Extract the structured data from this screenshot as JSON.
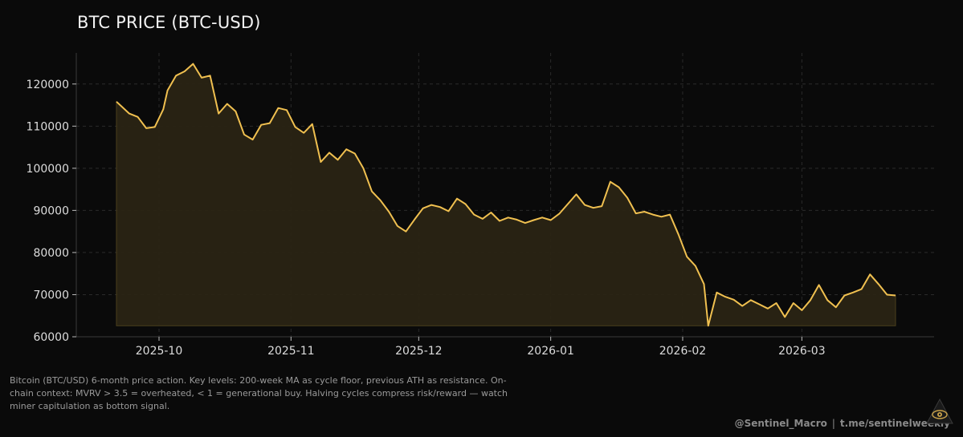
{
  "chart_title": "BTC PRICE (BTC-USD)",
  "caption": "Bitcoin (BTC/USD) 6-month price action. Key levels: 200-week MA as cycle floor, previous ATH as resistance. On-chain context: MVRV > 3.5 = overheated, < 1 = generational buy. Halving cycles compress risk/reward — watch miner capitulation as bottom signal.",
  "credit": {
    "handle": "@Sentinel_Macro",
    "separator": "|",
    "channel": "t.me/sentinelweekly"
  },
  "logo_icon": "eye-pyramid-icon",
  "colors": {
    "background": "#0a0a0a",
    "line": "#f0c050",
    "fill": "#2a2414",
    "grid": "#2a2a2a"
  },
  "chart_data": {
    "type": "area",
    "title": "BTC PRICE (BTC-USD)",
    "xlabel": "",
    "ylabel": "",
    "grid": true,
    "ylim": [
      60000,
      127000
    ],
    "yticks": [
      60000,
      70000,
      80000,
      90000,
      100000,
      110000,
      120000
    ],
    "xticks": [
      {
        "date": "2025-10-01",
        "label": "2025-10"
      },
      {
        "date": "2025-11-01",
        "label": "2025-11"
      },
      {
        "date": "2025-12-01",
        "label": "2025-12"
      },
      {
        "date": "2026-01-01",
        "label": "2026-01"
      },
      {
        "date": "2026-02-01",
        "label": "2026-02"
      },
      {
        "date": "2026-03-01",
        "label": "2026-03"
      }
    ],
    "x_start": "2025-09-21",
    "x_end": "2026-03-23",
    "baseline": 62600,
    "series": [
      {
        "values": [
          [
            "2025-09-21",
            115800
          ],
          [
            "2025-09-24",
            113000
          ],
          [
            "2025-09-26",
            112200
          ],
          [
            "2025-09-28",
            109500
          ],
          [
            "2025-09-30",
            109800
          ],
          [
            "2025-10-02",
            114000
          ],
          [
            "2025-10-03",
            118500
          ],
          [
            "2025-10-05",
            122000
          ],
          [
            "2025-10-07",
            123000
          ],
          [
            "2025-10-09",
            124800
          ],
          [
            "2025-10-11",
            121500
          ],
          [
            "2025-10-13",
            122000
          ],
          [
            "2025-10-15",
            113000
          ],
          [
            "2025-10-17",
            115300
          ],
          [
            "2025-10-19",
            113500
          ],
          [
            "2025-10-21",
            108000
          ],
          [
            "2025-10-23",
            106800
          ],
          [
            "2025-10-25",
            110300
          ],
          [
            "2025-10-27",
            110700
          ],
          [
            "2025-10-29",
            114300
          ],
          [
            "2025-10-31",
            113800
          ],
          [
            "2025-11-02",
            109800
          ],
          [
            "2025-11-04",
            108400
          ],
          [
            "2025-11-06",
            110500
          ],
          [
            "2025-11-08",
            101500
          ],
          [
            "2025-11-10",
            103700
          ],
          [
            "2025-11-12",
            102000
          ],
          [
            "2025-11-14",
            104500
          ],
          [
            "2025-11-16",
            103500
          ],
          [
            "2025-11-18",
            100000
          ],
          [
            "2025-11-20",
            94500
          ],
          [
            "2025-11-22",
            92400
          ],
          [
            "2025-11-24",
            89700
          ],
          [
            "2025-11-26",
            86300
          ],
          [
            "2025-11-28",
            85000
          ],
          [
            "2025-11-30",
            87800
          ],
          [
            "2025-12-02",
            90500
          ],
          [
            "2025-12-04",
            91300
          ],
          [
            "2025-12-06",
            90800
          ],
          [
            "2025-12-08",
            89800
          ],
          [
            "2025-12-10",
            92800
          ],
          [
            "2025-12-12",
            91500
          ],
          [
            "2025-12-14",
            89000
          ],
          [
            "2025-12-16",
            88000
          ],
          [
            "2025-12-18",
            89500
          ],
          [
            "2025-12-20",
            87500
          ],
          [
            "2025-12-22",
            88300
          ],
          [
            "2025-12-24",
            87800
          ],
          [
            "2025-12-26",
            87000
          ],
          [
            "2025-12-28",
            87700
          ],
          [
            "2025-12-30",
            88300
          ],
          [
            "2026-01-01",
            87700
          ],
          [
            "2026-01-03",
            89200
          ],
          [
            "2026-01-05",
            91500
          ],
          [
            "2026-01-07",
            93800
          ],
          [
            "2026-01-09",
            91300
          ],
          [
            "2026-01-11",
            90600
          ],
          [
            "2026-01-13",
            91000
          ],
          [
            "2026-01-15",
            96800
          ],
          [
            "2026-01-17",
            95500
          ],
          [
            "2026-01-19",
            93000
          ],
          [
            "2026-01-21",
            89300
          ],
          [
            "2026-01-23",
            89700
          ],
          [
            "2026-01-25",
            89000
          ],
          [
            "2026-01-27",
            88500
          ],
          [
            "2026-01-29",
            89000
          ],
          [
            "2026-01-31",
            84300
          ],
          [
            "2026-02-02",
            79000
          ],
          [
            "2026-02-04",
            76800
          ],
          [
            "2026-02-06",
            72500
          ],
          [
            "2026-02-07",
            62600
          ],
          [
            "2026-02-09",
            70500
          ],
          [
            "2026-02-11",
            69500
          ],
          [
            "2026-02-13",
            68800
          ],
          [
            "2026-02-15",
            67300
          ],
          [
            "2026-02-17",
            68700
          ],
          [
            "2026-02-19",
            67700
          ],
          [
            "2026-02-21",
            66700
          ],
          [
            "2026-02-23",
            68000
          ],
          [
            "2026-02-25",
            64700
          ],
          [
            "2026-02-27",
            68000
          ],
          [
            "2026-03-01",
            66300
          ],
          [
            "2026-03-03",
            68700
          ],
          [
            "2026-03-05",
            72300
          ],
          [
            "2026-03-07",
            68700
          ],
          [
            "2026-03-09",
            67000
          ],
          [
            "2026-03-11",
            69800
          ],
          [
            "2026-03-13",
            70500
          ],
          [
            "2026-03-15",
            71300
          ],
          [
            "2026-03-17",
            74800
          ],
          [
            "2026-03-19",
            72500
          ],
          [
            "2026-03-21",
            70000
          ],
          [
            "2026-03-23",
            69800
          ]
        ]
      }
    ]
  }
}
